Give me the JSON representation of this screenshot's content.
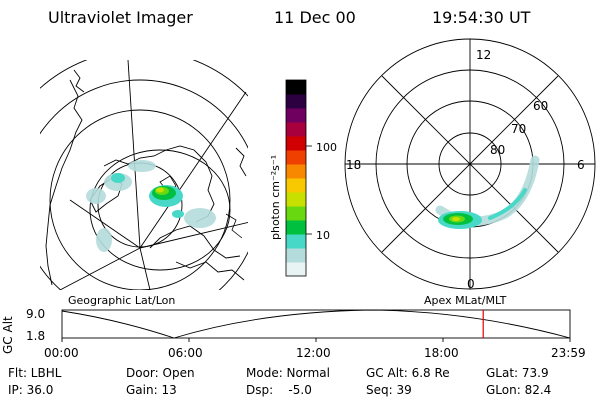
{
  "header": {
    "instrument": "Ultraviolet Imager",
    "date": "11 Dec 00",
    "time": "19:54:30 UT"
  },
  "colorbar": {
    "unit_label": "photon cm⁻²s⁻¹",
    "ticks": [
      "100",
      "10"
    ],
    "scale": "log",
    "colors": [
      "#e8f4f4",
      "#b4dcdc",
      "#48d8c8",
      "#00c040",
      "#68d810",
      "#c8e000",
      "#f8c800",
      "#f88800",
      "#f04000",
      "#d00000",
      "#a8003c",
      "#700060",
      "#2c0040",
      "#000000"
    ]
  },
  "geo_panel": {
    "label": "Geographic Lat/Lon"
  },
  "mag_panel": {
    "label": "Apex MLat/MLT",
    "mlt_labels": {
      "top": "12",
      "left": "18",
      "right": "6",
      "bottom": "0"
    },
    "lat_labels": [
      "60",
      "70",
      "80"
    ]
  },
  "altitude_plot": {
    "ylabel": "GC Alt",
    "y_ticks": [
      "9.0",
      "1.8"
    ],
    "x_ticks": [
      "00:00",
      "06:00",
      "12:00",
      "18:00",
      "23:59"
    ],
    "current_time_hours": 19.9,
    "marker_color": "#e00000"
  },
  "params": {
    "flt": "Flt: LBHL",
    "ip": "IP: 36.0",
    "door": "Door: Open",
    "gain": "Gain: 13",
    "mode": "Mode: Normal",
    "dsp": "Dsp:    -5.0",
    "gc_alt": "GC Alt: 6.8 Re",
    "seq": "Seq: 39",
    "glat": "GLat: 73.9",
    "glon": "GLon: 82.4"
  }
}
